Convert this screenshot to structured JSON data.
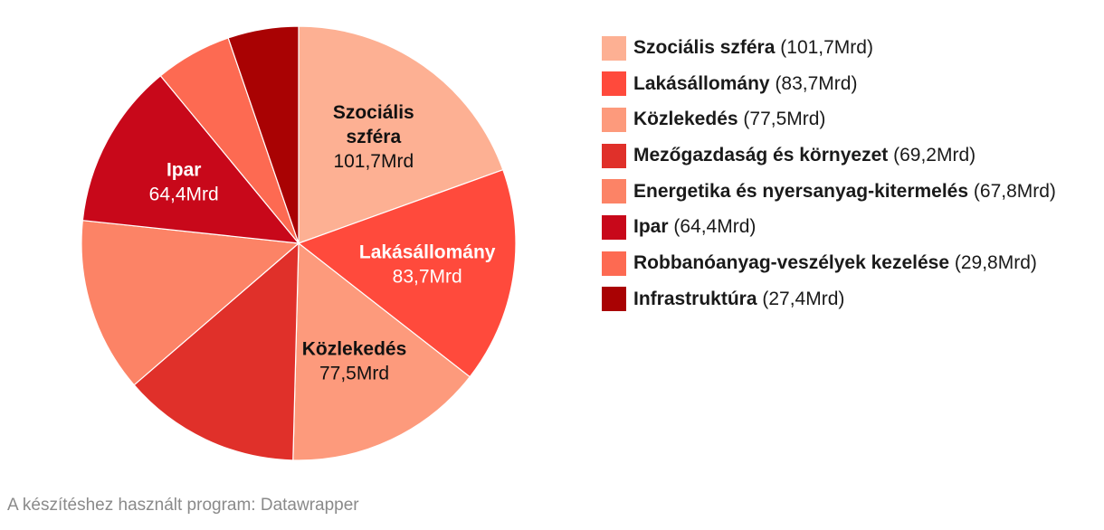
{
  "chart_data": {
    "type": "pie",
    "title": "",
    "series": [
      {
        "name": "Szociális szféra",
        "value": 101.7,
        "value_label": "101,7Mrd",
        "color": "#FDB093",
        "label_lines": [
          "Szociális",
          "szféra"
        ],
        "label_light": false
      },
      {
        "name": "Lakásállomány",
        "value": 83.7,
        "value_label": "83,7Mrd",
        "color": "#FF4A3C",
        "label_lines": [
          "Lakásállomány"
        ],
        "label_light": true
      },
      {
        "name": "Közlekedés",
        "value": 77.5,
        "value_label": "77,5Mrd",
        "color": "#FD9A7C",
        "label_lines": [
          "Közlekedés"
        ],
        "label_light": false
      },
      {
        "name": "Mezőgazdaság és környezet",
        "value": 69.2,
        "value_label": "69,2Mrd",
        "color": "#E0302A",
        "label_lines": [],
        "label_light": true
      },
      {
        "name": "Energetika és nyersanyag-kitermelés",
        "value": 67.8,
        "value_label": "67,8Mrd",
        "color": "#FC8366",
        "label_lines": [],
        "label_light": false
      },
      {
        "name": "Ipar",
        "value": 64.4,
        "value_label": "64,4Mrd",
        "color": "#C8081A",
        "label_lines": [
          "Ipar"
        ],
        "label_light": true
      },
      {
        "name": "Robbanóanyag-veszélyek kezelése",
        "value": 29.8,
        "value_label": "29,8Mrd",
        "color": "#FD6A52",
        "label_lines": [],
        "label_light": false
      },
      {
        "name": "Infrastruktúra",
        "value": 27.4,
        "value_label": "27,4Mrd",
        "color": "#A90203",
        "label_lines": [],
        "label_light": true
      }
    ],
    "legend_position": "right",
    "legend": [
      {
        "name": "Szociális szféra",
        "value": "(101,7Mrd)",
        "color": "#FDB093"
      },
      {
        "name": "Lakásállomány",
        "value": "(83,7Mrd)",
        "color": "#FF4A3C"
      },
      {
        "name": "Közlekedés",
        "value": "(77,5Mrd)",
        "color": "#FD9A7C"
      },
      {
        "name": "Mezőgazdaság és környezet",
        "value": "(69,2Mrd)",
        "color": "#E0302A"
      },
      {
        "name": "Energetika és nyersanyag-kitermelés",
        "value": "(67,8Mrd)",
        "color": "#FC8366"
      },
      {
        "name": "Ipar",
        "value": "(64,4Mrd)",
        "color": "#C8081A"
      },
      {
        "name": "Robbanóanyag-veszélyek kezelése",
        "value": "(29,8Mrd)",
        "color": "#FD6A52"
      },
      {
        "name": "Infrastruktúra",
        "value": "(27,4Mrd)",
        "color": "#A90203"
      }
    ]
  },
  "footer": {
    "credit": "A készítéshez használt program: Datawrapper"
  }
}
